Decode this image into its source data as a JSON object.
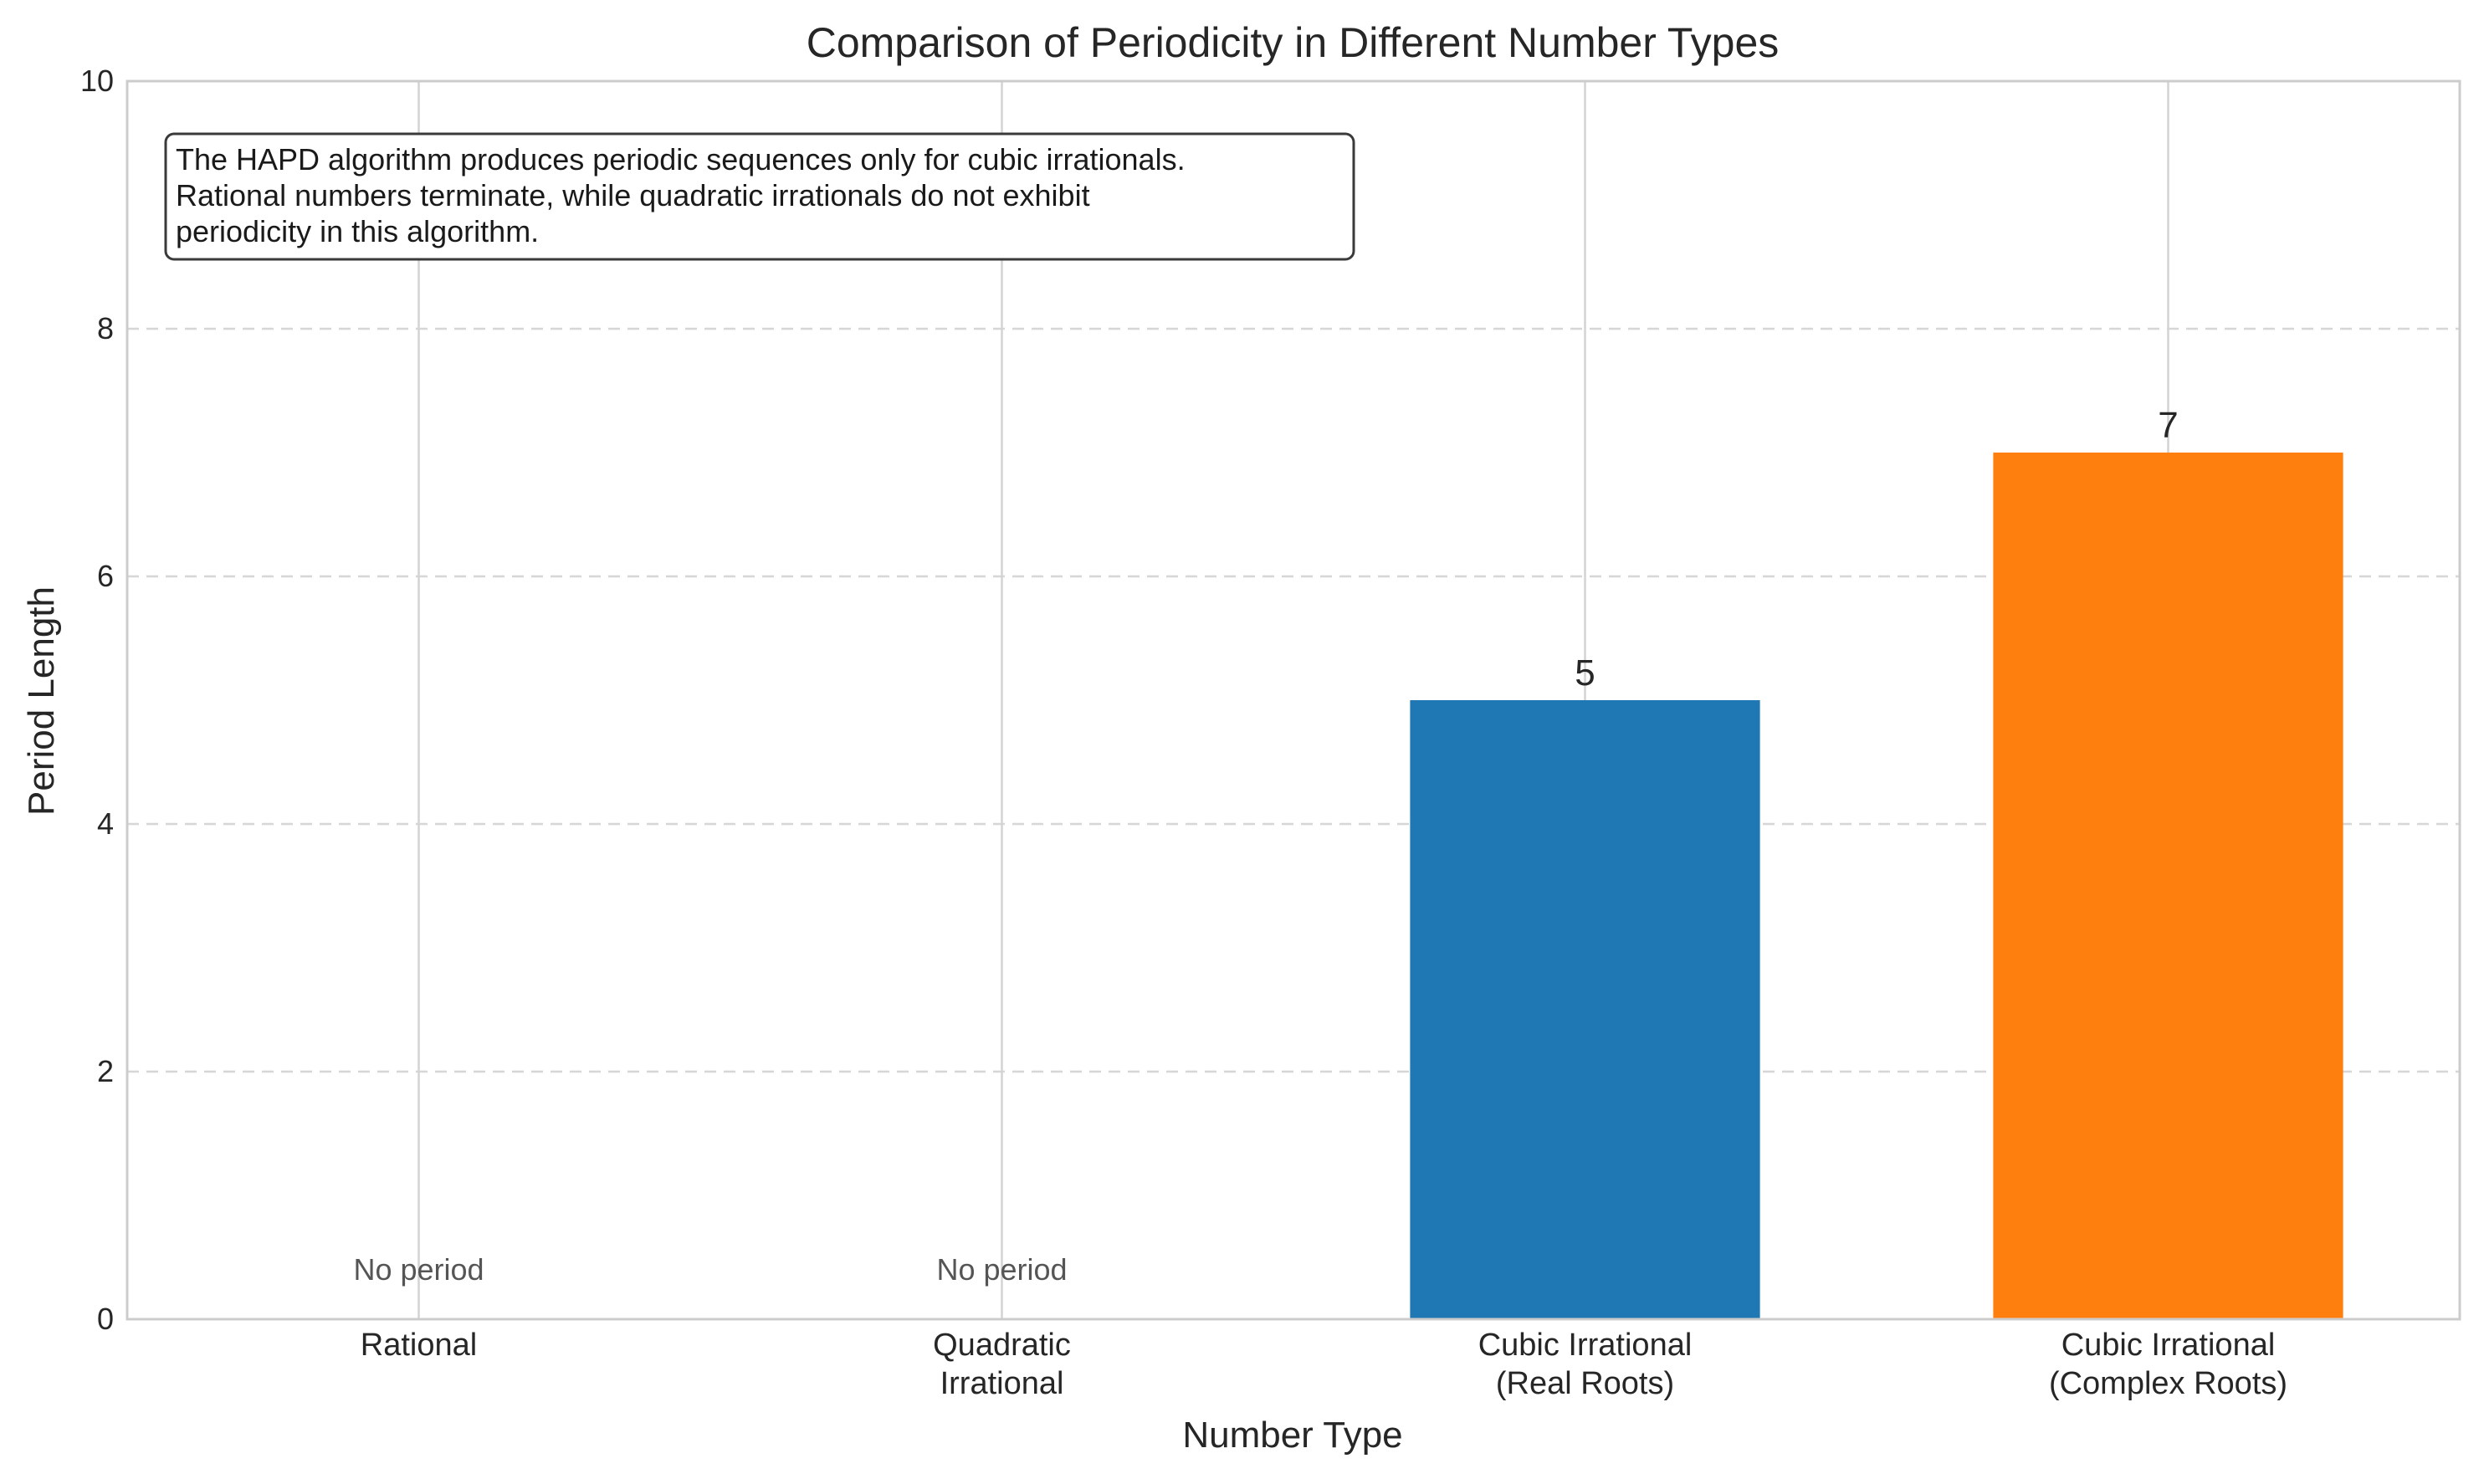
{
  "chart_data": {
    "type": "bar",
    "title": "Comparison of Periodicity in Different Number Types",
    "xlabel": "Number Type",
    "ylabel": "Period Length",
    "ylim": [
      0,
      10
    ],
    "yticks": [
      "0",
      "2",
      "4",
      "6",
      "8",
      "10"
    ],
    "categories": [
      [
        "Rational"
      ],
      [
        "Quadratic",
        "Irrational"
      ],
      [
        "Cubic Irrational",
        "(Real Roots)"
      ],
      [
        "Cubic Irrational",
        "(Complex Roots)"
      ]
    ],
    "values": [
      0,
      0,
      5,
      7
    ],
    "bar_labels": [
      "No period",
      "No period",
      "5",
      "7"
    ],
    "colors": [
      "#1f77b4",
      "#ff7f0e",
      "#1f77b4",
      "#ff7f0e"
    ],
    "grid": {
      "y": "dashed",
      "x": "solid"
    },
    "annotation": [
      "The HAPD algorithm produces periodic sequences only for cubic irrationals.",
      "Rational numbers terminate, while quadratic irrationals do not exhibit",
      "periodicity in this algorithm."
    ]
  }
}
